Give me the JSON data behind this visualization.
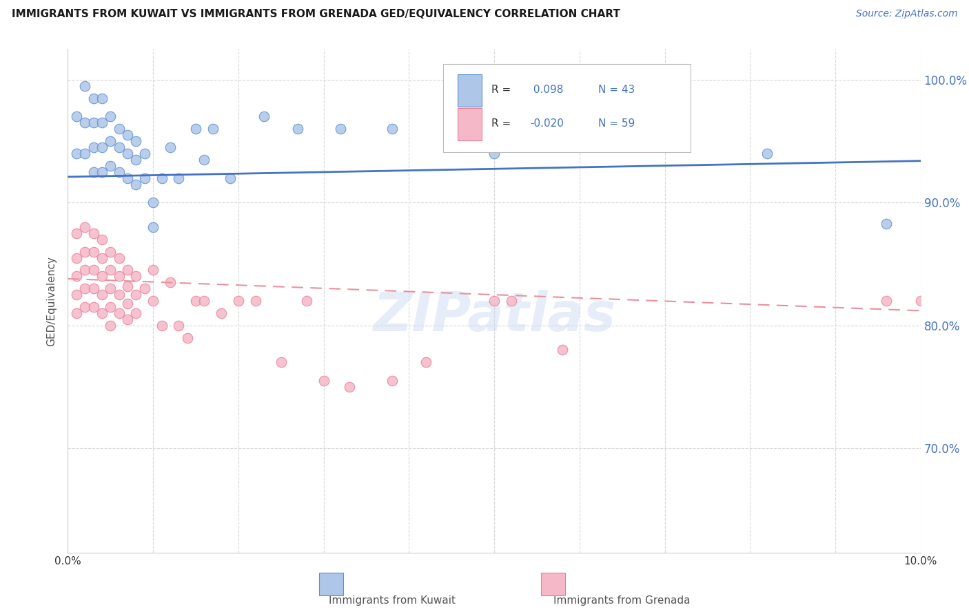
{
  "title": "IMMIGRANTS FROM KUWAIT VS IMMIGRANTS FROM GRENADA GED/EQUIVALENCY CORRELATION CHART",
  "source": "Source: ZipAtlas.com",
  "ylabel": "GED/Equivalency",
  "xmin": 0.0,
  "xmax": 0.1,
  "ymin": 0.615,
  "ymax": 1.025,
  "yticks": [
    0.7,
    0.8,
    0.9,
    1.0
  ],
  "ytick_labels": [
    "70.0%",
    "80.0%",
    "90.0%",
    "100.0%"
  ],
  "kuwait_R": 0.098,
  "kuwait_N": 43,
  "grenada_R": -0.02,
  "grenada_N": 59,
  "kuwait_color": "#aec6e8",
  "grenada_color": "#f5b8c8",
  "kuwait_edge_color": "#5b8fd4",
  "grenada_edge_color": "#e88098",
  "kuwait_line_color": "#4472c4",
  "grenada_line_color": "#e8909c",
  "watermark": "ZIPatlas",
  "kuwait_line_y0": 0.921,
  "kuwait_line_y1": 0.934,
  "grenada_line_y0": 0.838,
  "grenada_line_y1": 0.812,
  "kuwait_scatter_x": [
    0.001,
    0.001,
    0.002,
    0.002,
    0.002,
    0.003,
    0.003,
    0.003,
    0.003,
    0.004,
    0.004,
    0.004,
    0.004,
    0.005,
    0.005,
    0.005,
    0.006,
    0.006,
    0.006,
    0.007,
    0.007,
    0.007,
    0.008,
    0.008,
    0.008,
    0.009,
    0.009,
    0.01,
    0.01,
    0.011,
    0.012,
    0.013,
    0.015,
    0.016,
    0.017,
    0.019,
    0.023,
    0.027,
    0.032,
    0.038,
    0.05,
    0.082,
    0.096
  ],
  "kuwait_scatter_y": [
    0.97,
    0.94,
    0.995,
    0.965,
    0.94,
    0.985,
    0.965,
    0.945,
    0.925,
    0.985,
    0.965,
    0.945,
    0.925,
    0.97,
    0.95,
    0.93,
    0.96,
    0.945,
    0.925,
    0.955,
    0.94,
    0.92,
    0.95,
    0.935,
    0.915,
    0.94,
    0.92,
    0.9,
    0.88,
    0.92,
    0.945,
    0.92,
    0.96,
    0.935,
    0.96,
    0.92,
    0.97,
    0.96,
    0.96,
    0.96,
    0.94,
    0.94,
    0.883
  ],
  "grenada_scatter_x": [
    0.001,
    0.001,
    0.001,
    0.001,
    0.001,
    0.002,
    0.002,
    0.002,
    0.002,
    0.002,
    0.003,
    0.003,
    0.003,
    0.003,
    0.003,
    0.004,
    0.004,
    0.004,
    0.004,
    0.004,
    0.005,
    0.005,
    0.005,
    0.005,
    0.005,
    0.006,
    0.006,
    0.006,
    0.006,
    0.007,
    0.007,
    0.007,
    0.007,
    0.008,
    0.008,
    0.008,
    0.009,
    0.01,
    0.01,
    0.011,
    0.012,
    0.013,
    0.014,
    0.015,
    0.016,
    0.018,
    0.02,
    0.022,
    0.025,
    0.028,
    0.03,
    0.033,
    0.038,
    0.042,
    0.05,
    0.052,
    0.058,
    0.096,
    0.1
  ],
  "grenada_scatter_y": [
    0.875,
    0.855,
    0.84,
    0.825,
    0.81,
    0.88,
    0.86,
    0.845,
    0.83,
    0.815,
    0.875,
    0.86,
    0.845,
    0.83,
    0.815,
    0.87,
    0.855,
    0.84,
    0.825,
    0.81,
    0.86,
    0.845,
    0.83,
    0.815,
    0.8,
    0.855,
    0.84,
    0.825,
    0.81,
    0.845,
    0.832,
    0.818,
    0.805,
    0.84,
    0.825,
    0.81,
    0.83,
    0.82,
    0.845,
    0.8,
    0.835,
    0.8,
    0.79,
    0.82,
    0.82,
    0.81,
    0.82,
    0.82,
    0.77,
    0.82,
    0.755,
    0.75,
    0.755,
    0.77,
    0.82,
    0.82,
    0.78,
    0.82,
    0.82
  ],
  "background_color": "#ffffff",
  "grid_color": "#d8d8d8"
}
